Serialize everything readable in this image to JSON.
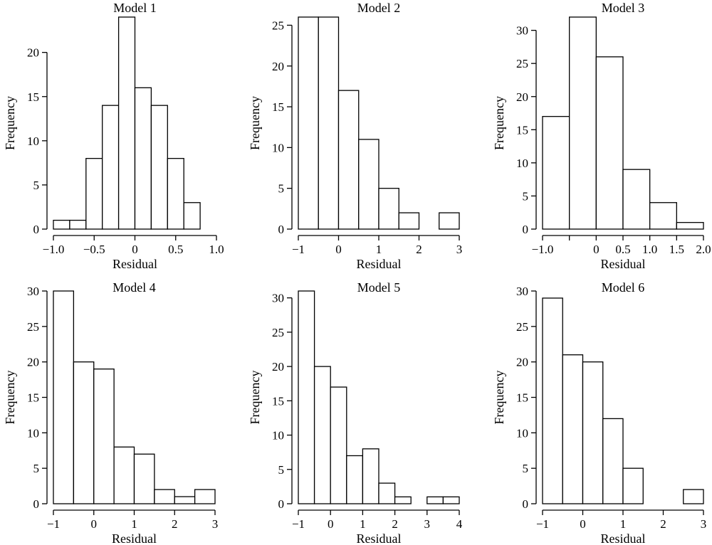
{
  "chart_data": [
    {
      "type": "histogram",
      "title": "Model 1",
      "xlabel": "Residual",
      "ylabel": "Frequency",
      "bins": [
        [
          -1.0,
          -0.8,
          1
        ],
        [
          -0.8,
          -0.6,
          1
        ],
        [
          -0.6,
          -0.4,
          8
        ],
        [
          -0.4,
          -0.2,
          14
        ],
        [
          -0.2,
          0.0,
          24
        ],
        [
          0.0,
          0.2,
          16
        ],
        [
          0.2,
          0.4,
          14
        ],
        [
          0.4,
          0.6,
          8
        ],
        [
          0.6,
          0.8,
          3
        ]
      ],
      "xticks": [
        -1.0,
        -0.5,
        0,
        0.5,
        1.0
      ],
      "xtick_labels": [
        "−1.0",
        "−0.5",
        "0",
        "0.5",
        "1.0"
      ],
      "yticks": [
        0,
        5,
        10,
        15,
        20
      ],
      "ytick_labels": [
        "0",
        "5",
        "10",
        "15",
        "20"
      ],
      "xlim": [
        -1.0,
        1.0
      ],
      "ylim": [
        0,
        24
      ]
    },
    {
      "type": "histogram",
      "title": "Model 2",
      "xlabel": "Residual",
      "ylabel": "Frequency",
      "bins": [
        [
          -1.0,
          -0.5,
          26
        ],
        [
          -0.5,
          0.0,
          26
        ],
        [
          0.0,
          0.5,
          17
        ],
        [
          0.5,
          1.0,
          11
        ],
        [
          1.0,
          1.5,
          5
        ],
        [
          1.5,
          2.0,
          2
        ],
        [
          2.0,
          2.5,
          0
        ],
        [
          2.5,
          3.0,
          2
        ]
      ],
      "xticks": [
        -1,
        0,
        1,
        2,
        3
      ],
      "xtick_labels": [
        "−1",
        "0",
        "1",
        "2",
        "3"
      ],
      "yticks": [
        0,
        5,
        10,
        15,
        20,
        25
      ],
      "ytick_labels": [
        "0",
        "5",
        "10",
        "15",
        "20",
        "25"
      ],
      "xlim": [
        -1,
        3
      ],
      "ylim": [
        0,
        26
      ]
    },
    {
      "type": "histogram",
      "title": "Model 3",
      "xlabel": "Residual",
      "ylabel": "Frequency",
      "bins": [
        [
          -1.0,
          -0.5,
          17
        ],
        [
          -0.5,
          0.0,
          32
        ],
        [
          0.0,
          0.5,
          26
        ],
        [
          0.5,
          1.0,
          9
        ],
        [
          1.0,
          1.5,
          4
        ],
        [
          1.5,
          2.0,
          1
        ]
      ],
      "xticks": [
        -1.0,
        -0.5,
        0,
        0.5,
        1.0,
        1.5,
        2.0
      ],
      "xtick_labels": [
        "−1.0",
        "",
        "0",
        "0.5",
        "1.0",
        "1.5",
        "2.0"
      ],
      "yticks": [
        0,
        5,
        10,
        15,
        20,
        25,
        30
      ],
      "ytick_labels": [
        "0",
        "5",
        "10",
        "15",
        "20",
        "25",
        "30"
      ],
      "xlim": [
        -1.0,
        2.0
      ],
      "ylim": [
        0,
        32
      ]
    },
    {
      "type": "histogram",
      "title": "Model 4",
      "xlabel": "Residual",
      "ylabel": "Frequency",
      "bins": [
        [
          -1.0,
          -0.5,
          30
        ],
        [
          -0.5,
          0.0,
          20
        ],
        [
          0.0,
          0.5,
          19
        ],
        [
          0.5,
          1.0,
          8
        ],
        [
          1.0,
          1.5,
          7
        ],
        [
          1.5,
          2.0,
          2
        ],
        [
          2.0,
          2.5,
          1
        ],
        [
          2.5,
          3.0,
          2
        ]
      ],
      "xticks": [
        -1,
        0,
        1,
        2,
        3
      ],
      "xtick_labels": [
        "−1",
        "0",
        "1",
        "2",
        "3"
      ],
      "yticks": [
        0,
        5,
        10,
        15,
        20,
        25,
        30
      ],
      "ytick_labels": [
        "0",
        "5",
        "10",
        "15",
        "20",
        "25",
        "30"
      ],
      "xlim": [
        -1,
        3
      ],
      "ylim": [
        0,
        30
      ]
    },
    {
      "type": "histogram",
      "title": "Model 5",
      "xlabel": "Residual",
      "ylabel": "Frequency",
      "bins": [
        [
          -1.0,
          -0.5,
          31
        ],
        [
          -0.5,
          0.0,
          20
        ],
        [
          0.0,
          0.5,
          17
        ],
        [
          0.5,
          1.0,
          7
        ],
        [
          1.0,
          1.5,
          8
        ],
        [
          1.5,
          2.0,
          3
        ],
        [
          2.0,
          2.5,
          1
        ],
        [
          2.5,
          3.0,
          0
        ],
        [
          3.0,
          3.5,
          1
        ],
        [
          3.5,
          4.0,
          1
        ]
      ],
      "xticks": [
        -1,
        0,
        1,
        2,
        3,
        4
      ],
      "xtick_labels": [
        "−1",
        "0",
        "1",
        "2",
        "3",
        "4"
      ],
      "yticks": [
        0,
        5,
        10,
        15,
        20,
        25,
        30
      ],
      "ytick_labels": [
        "0",
        "5",
        "10",
        "15",
        "20",
        "25",
        "30"
      ],
      "xlim": [
        -1,
        4
      ],
      "ylim": [
        0,
        31
      ]
    },
    {
      "type": "histogram",
      "title": "Model 6",
      "xlabel": "Residual",
      "ylabel": "Frequency",
      "bins": [
        [
          -1.0,
          -0.5,
          29
        ],
        [
          -0.5,
          0.0,
          21
        ],
        [
          0.0,
          0.5,
          20
        ],
        [
          0.5,
          1.0,
          12
        ],
        [
          1.0,
          1.5,
          5
        ],
        [
          1.5,
          2.0,
          0
        ],
        [
          2.0,
          2.5,
          0
        ],
        [
          2.5,
          3.0,
          2
        ]
      ],
      "xticks": [
        -1,
        0,
        1,
        2,
        3
      ],
      "xtick_labels": [
        "−1",
        "0",
        "1",
        "2",
        "3"
      ],
      "yticks": [
        0,
        5,
        10,
        15,
        20,
        25,
        30
      ],
      "ytick_labels": [
        "0",
        "5",
        "10",
        "15",
        "20",
        "25",
        "30"
      ],
      "xlim": [
        -1,
        3
      ],
      "ylim": [
        0,
        30
      ]
    }
  ]
}
